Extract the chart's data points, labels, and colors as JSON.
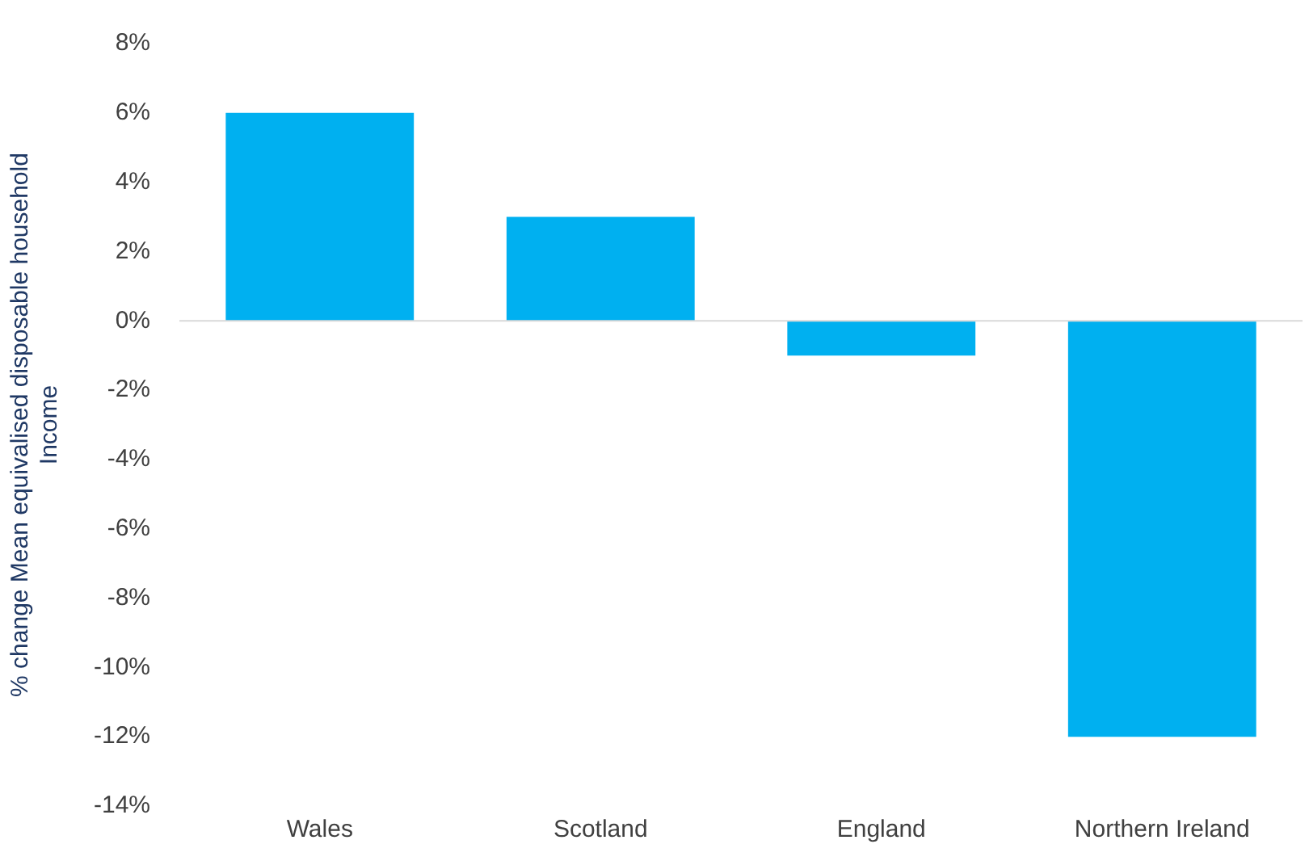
{
  "chart_data": {
    "type": "bar",
    "ylabel": "% change Mean equivalised disposable household Income",
    "categories": [
      "Wales",
      "Scotland",
      "England",
      "Northern Ireland"
    ],
    "values": [
      6,
      3,
      -1,
      -12
    ],
    "color": "#00b0f0",
    "ylim": [
      -14,
      8
    ],
    "yticks": [
      {
        "value": -14,
        "label": "-14%"
      },
      {
        "value": -12,
        "label": "-12%"
      },
      {
        "value": -10,
        "label": "-10%"
      },
      {
        "value": -8,
        "label": "-8%"
      },
      {
        "value": -6,
        "label": "-6%"
      },
      {
        "value": -4,
        "label": "-4%"
      },
      {
        "value": -2,
        "label": "-2%"
      },
      {
        "value": 0,
        "label": "0%"
      },
      {
        "value": 2,
        "label": "2%"
      },
      {
        "value": 4,
        "label": "4%"
      },
      {
        "value": 6,
        "label": "6%"
      },
      {
        "value": 8,
        "label": "8%"
      }
    ],
    "grid": false,
    "legend": false,
    "ref_lines": [
      {
        "axis": "y",
        "value": 0,
        "color": "#d9d9d9"
      }
    ]
  }
}
